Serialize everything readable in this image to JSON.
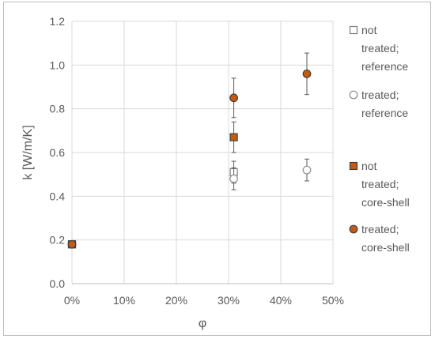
{
  "chart_data": {
    "type": "scatter",
    "xlabel": "φ",
    "ylabel": "k [W/m/K]",
    "xlim": [
      0,
      0.5
    ],
    "ylim": [
      0,
      1.2
    ],
    "x_ticks": [
      0,
      0.1,
      0.2,
      0.3,
      0.4,
      0.5
    ],
    "x_tick_labels": [
      "0%",
      "10%",
      "20%",
      "30%",
      "40%",
      "50%"
    ],
    "y_ticks": [
      0,
      0.2,
      0.4,
      0.6,
      0.8,
      1.0,
      1.2
    ],
    "y_tick_labels": [
      "0.0",
      "0.2",
      "0.4",
      "0.6",
      "0.8",
      "1.0",
      "1.2"
    ],
    "grid": true,
    "legend_position": "right",
    "series": [
      {
        "name": "not treated; reference",
        "marker": "square",
        "filled": false,
        "color": "#7f7f7f",
        "points": [
          {
            "x": 0,
            "y": 0.18
          },
          {
            "x": 0.31,
            "y": 0.51,
            "err": 0.05
          }
        ]
      },
      {
        "name": "treated; reference",
        "marker": "circle",
        "filled": false,
        "color": "#8c8c8c",
        "points": [
          {
            "x": 0,
            "y": 0.18
          },
          {
            "x": 0.31,
            "y": 0.48,
            "err": 0.05
          },
          {
            "x": 0.45,
            "y": 0.52,
            "err": 0.05
          }
        ]
      },
      {
        "name": "not treated; core-shell",
        "marker": "square",
        "filled": true,
        "color": "#c55a11",
        "points": [
          {
            "x": 0,
            "y": 0.18
          },
          {
            "x": 0.31,
            "y": 0.67,
            "err": 0.07
          }
        ]
      },
      {
        "name": "treated; core-shell",
        "marker": "circle",
        "filled": true,
        "color": "#c55a11",
        "points": [
          {
            "x": 0,
            "y": 0.18
          },
          {
            "x": 0.31,
            "y": 0.85,
            "err": 0.09
          },
          {
            "x": 0.45,
            "y": 0.96,
            "err": 0.095
          }
        ]
      }
    ],
    "legend": [
      {
        "lines": [
          "not",
          "treated;",
          "reference"
        ]
      },
      {
        "lines": [
          "treated;",
          "reference"
        ]
      },
      {
        "lines": [
          "not",
          "treated;",
          "core-shell"
        ]
      },
      {
        "lines": [
          "treated;",
          "core-shell"
        ]
      }
    ]
  }
}
